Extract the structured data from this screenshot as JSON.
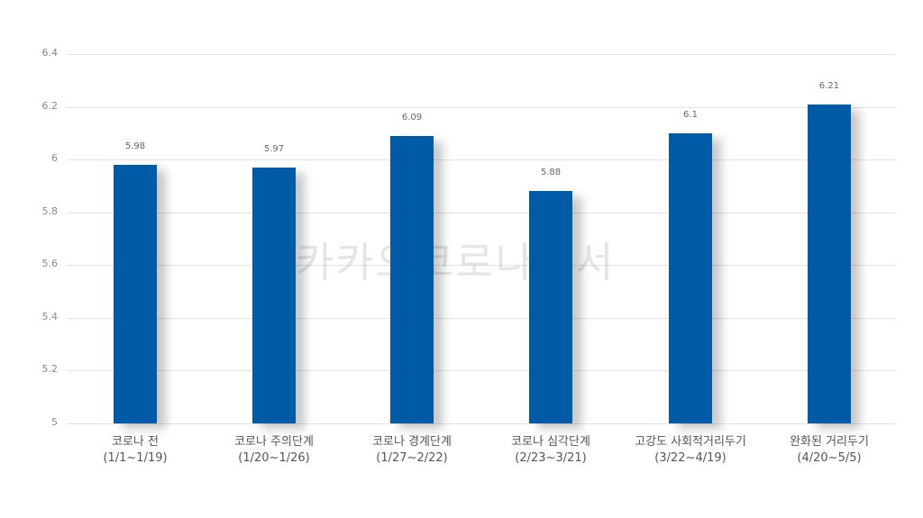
{
  "chart_data": {
    "type": "bar",
    "title": "",
    "xlabel": "",
    "ylabel": "",
    "ylim": [
      5,
      6.4
    ],
    "yticks": [
      "6.4",
      "6.2",
      "6",
      "5.8",
      "5.6",
      "5.4",
      "5.2",
      "5"
    ],
    "grid": true,
    "legend": null,
    "bar_color": "#005BA6",
    "categories": [
      {
        "name": "코로나 전",
        "period": "(1/1~1/19)"
      },
      {
        "name": "코로나 주의단계",
        "period": "(1/20~1/26)"
      },
      {
        "name": "코로나 경계단계",
        "period": "(1/27~2/22)"
      },
      {
        "name": "코로나 심각단계",
        "period": "(2/23~3/21)"
      },
      {
        "name": "고강도 사회적거리두기",
        "period": "(3/22~4/19)"
      },
      {
        "name": "완화된 거리두기",
        "period": "(4/20~5/5)"
      }
    ],
    "values": [
      5.98,
      5.97,
      6.09,
      5.88,
      6.1,
      6.21
    ],
    "value_labels": [
      "5.98",
      "5.97",
      "6.09",
      "5.88",
      "6.1",
      "6.21"
    ],
    "watermark": "카카오코로나백서"
  }
}
